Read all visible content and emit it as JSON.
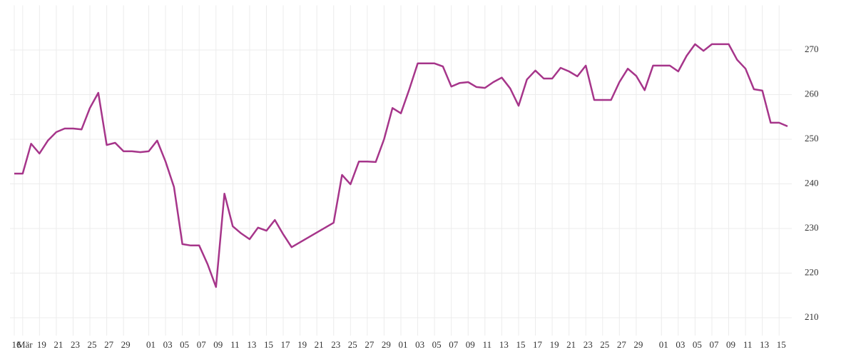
{
  "chart_data": {
    "type": "line",
    "x": [
      "03-16",
      "03-17",
      "03-18",
      "03-19",
      "03-20",
      "03-21",
      "03-22",
      "03-23",
      "03-24",
      "03-25",
      "03-26",
      "03-27",
      "03-28",
      "03-29",
      "03-30",
      "03-31",
      "04-01",
      "04-02",
      "04-03",
      "04-04",
      "04-05",
      "04-06",
      "04-07",
      "04-08",
      "04-09",
      "04-10",
      "04-11",
      "04-12",
      "04-13",
      "04-14",
      "04-15",
      "04-16",
      "04-17",
      "04-18",
      "04-23",
      "04-24",
      "04-25",
      "04-26",
      "04-27",
      "04-28",
      "04-29",
      "04-30",
      "05-01",
      "05-02",
      "05-03",
      "05-04",
      "05-05",
      "05-06",
      "05-07",
      "05-08",
      "05-09",
      "05-10",
      "05-11",
      "05-12",
      "05-13",
      "05-14",
      "05-15",
      "05-16",
      "05-17",
      "05-18",
      "05-19",
      "05-20",
      "05-21",
      "05-22",
      "05-23",
      "05-24",
      "05-25",
      "05-26",
      "05-27",
      "05-28",
      "05-29",
      "05-30",
      "05-31",
      "06-01",
      "06-02",
      "06-03",
      "06-04",
      "06-05",
      "06-06",
      "06-07",
      "06-08",
      "06-09",
      "06-10",
      "06-11",
      "06-12",
      "06-13",
      "06-14",
      "06-15",
      "06-16"
    ],
    "series": [
      {
        "color": "#a6358a",
        "values": [
          242.3,
          242.3,
          249.0,
          246.8,
          249.7,
          251.6,
          252.4,
          252.4,
          252.2,
          257.0,
          260.4,
          248.7,
          249.2,
          247.3,
          247.3,
          247.1,
          247.3,
          249.7,
          245.0,
          239.3,
          226.5,
          226.2,
          226.2,
          222.0,
          216.9,
          237.8,
          230.5,
          228.9,
          227.6,
          230.2,
          229.5,
          231.9,
          228.7,
          225.8,
          231.3,
          242.0,
          239.9,
          245.0,
          245.0,
          244.9,
          250.0,
          257.0,
          255.8,
          261.2,
          267.0,
          267.0,
          267.0,
          266.3,
          261.8,
          262.6,
          262.8,
          261.7,
          261.5,
          262.8,
          263.8,
          261.4,
          257.5,
          263.4,
          265.4,
          263.6,
          263.6,
          266.0,
          265.2,
          264.1,
          266.5,
          258.8,
          258.8,
          258.8,
          262.8,
          265.8,
          264.2,
          261.0,
          266.5,
          266.5,
          266.5,
          265.2,
          268.7,
          271.3,
          269.8,
          271.3,
          271.3,
          271.3,
          267.8,
          265.8,
          261.2,
          260.9,
          253.7,
          253.7,
          252.9
        ]
      }
    ],
    "xlim": [
      "03-16",
      "06-16"
    ],
    "xticks": [
      {
        "value": "03-16",
        "label": "16"
      },
      {
        "value": "03-17",
        "label": "Mär"
      },
      {
        "value": "03-19",
        "label": "19"
      },
      {
        "value": "03-21",
        "label": "21"
      },
      {
        "value": "03-23",
        "label": "23"
      },
      {
        "value": "03-25",
        "label": "25"
      },
      {
        "value": "03-27",
        "label": "27"
      },
      {
        "value": "03-29",
        "label": "29"
      },
      {
        "value": "04-01",
        "label": "01"
      },
      {
        "value": "04-03",
        "label": "03"
      },
      {
        "value": "04-05",
        "label": "05"
      },
      {
        "value": "04-07",
        "label": "07"
      },
      {
        "value": "04-09",
        "label": "09"
      },
      {
        "value": "04-11",
        "label": "11"
      },
      {
        "value": "04-13",
        "label": "13"
      },
      {
        "value": "04-15",
        "label": "15"
      },
      {
        "value": "04-17",
        "label": "17"
      },
      {
        "value": "04-19",
        "label": "19"
      },
      {
        "value": "04-21",
        "label": "21"
      },
      {
        "value": "04-23",
        "label": "23"
      },
      {
        "value": "04-25",
        "label": "25"
      },
      {
        "value": "04-27",
        "label": "27"
      },
      {
        "value": "04-29",
        "label": "29"
      },
      {
        "value": "05-01",
        "label": "01"
      },
      {
        "value": "05-03",
        "label": "03"
      },
      {
        "value": "05-05",
        "label": "05"
      },
      {
        "value": "05-07",
        "label": "07"
      },
      {
        "value": "05-09",
        "label": "09"
      },
      {
        "value": "05-11",
        "label": "11"
      },
      {
        "value": "05-13",
        "label": "13"
      },
      {
        "value": "05-15",
        "label": "15"
      },
      {
        "value": "05-17",
        "label": "17"
      },
      {
        "value": "05-19",
        "label": "19"
      },
      {
        "value": "05-21",
        "label": "21"
      },
      {
        "value": "05-23",
        "label": "23"
      },
      {
        "value": "05-25",
        "label": "25"
      },
      {
        "value": "05-27",
        "label": "27"
      },
      {
        "value": "05-29",
        "label": "29"
      },
      {
        "value": "06-01",
        "label": "01"
      },
      {
        "value": "06-03",
        "label": "03"
      },
      {
        "value": "06-05",
        "label": "05"
      },
      {
        "value": "06-07",
        "label": "07"
      },
      {
        "value": "06-09",
        "label": "09"
      },
      {
        "value": "06-11",
        "label": "11"
      },
      {
        "value": "06-13",
        "label": "13"
      },
      {
        "value": "06-15",
        "label": "15"
      }
    ],
    "ylim": [
      206,
      280
    ],
    "yticks": [
      210,
      220,
      230,
      240,
      250,
      260,
      270
    ],
    "grid": true
  }
}
